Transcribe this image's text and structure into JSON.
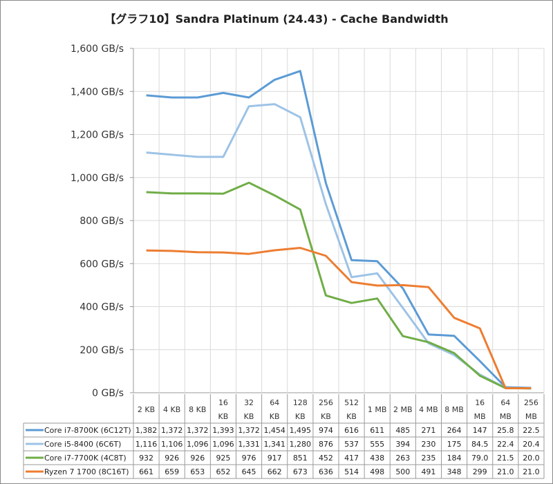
{
  "chart_data": {
    "type": "line",
    "title": "【グラフ10】Sandra Platinum (24.43) - Cache Bandwidth",
    "xlabel": "",
    "ylabel": "",
    "ylim": [
      0,
      1600
    ],
    "yticks": [
      "0 GB/s",
      "200 GB/s",
      "400 GB/s",
      "600 GB/s",
      "800 GB/s",
      "1,000 GB/s",
      "1,200 GB/s",
      "1,400 GB/s",
      "1,600 GB/s"
    ],
    "grid": true,
    "legend": "data-table",
    "categories": [
      [
        "2 KB"
      ],
      [
        "4 KB"
      ],
      [
        "8 KB"
      ],
      [
        "16",
        "KB"
      ],
      [
        "32",
        "KB"
      ],
      [
        "64",
        "KB"
      ],
      [
        "128",
        "KB"
      ],
      [
        "256",
        "KB"
      ],
      [
        "512",
        "KB"
      ],
      [
        "1 MB"
      ],
      [
        "2 MB"
      ],
      [
        "4 MB"
      ],
      [
        "8 MB"
      ],
      [
        "16",
        "MB"
      ],
      [
        "64",
        "MB"
      ],
      [
        "256",
        "MB"
      ]
    ],
    "series": [
      {
        "name": "Core i7-8700K (6C12T)",
        "color": "#5b9bd5",
        "values": [
          1382,
          1372,
          1372,
          1393,
          1372,
          1454,
          1495,
          974,
          616,
          611,
          485,
          271,
          264,
          147,
          25.8,
          22.5
        ],
        "labels": [
          "1,382",
          "1,372",
          "1,372",
          "1,393",
          "1,372",
          "1,454",
          "1,495",
          "974",
          "616",
          "611",
          "485",
          "271",
          "264",
          "147",
          "25.8",
          "22.5"
        ]
      },
      {
        "name": "Core i5-8400 (6C6T)",
        "color": "#9dc3e6",
        "values": [
          1116,
          1106,
          1096,
          1096,
          1331,
          1341,
          1280,
          876,
          537,
          555,
          394,
          230,
          175,
          84.5,
          22.4,
          20.4
        ],
        "labels": [
          "1,116",
          "1,106",
          "1,096",
          "1,096",
          "1,331",
          "1,341",
          "1,280",
          "876",
          "537",
          "555",
          "394",
          "230",
          "175",
          "84.5",
          "22.4",
          "20.4"
        ]
      },
      {
        "name": "Core i7-7700K (4C8T)",
        "color": "#70ad47",
        "values": [
          932,
          926,
          926,
          925,
          976,
          917,
          851,
          452,
          417,
          438,
          263,
          235,
          184,
          79.0,
          21.5,
          20.0
        ],
        "labels": [
          "932",
          "926",
          "926",
          "925",
          "976",
          "917",
          "851",
          "452",
          "417",
          "438",
          "263",
          "235",
          "184",
          "79.0",
          "21.5",
          "20.0"
        ]
      },
      {
        "name": "Ryzen 7 1700 (8C16T)",
        "color": "#ed7d31",
        "values": [
          661,
          659,
          653,
          652,
          645,
          662,
          673,
          636,
          514,
          498,
          500,
          491,
          348,
          299,
          21.0,
          21.0
        ],
        "labels": [
          "661",
          "659",
          "653",
          "652",
          "645",
          "662",
          "673",
          "636",
          "514",
          "498",
          "500",
          "491",
          "348",
          "299",
          "21.0",
          "21.0"
        ]
      }
    ]
  }
}
